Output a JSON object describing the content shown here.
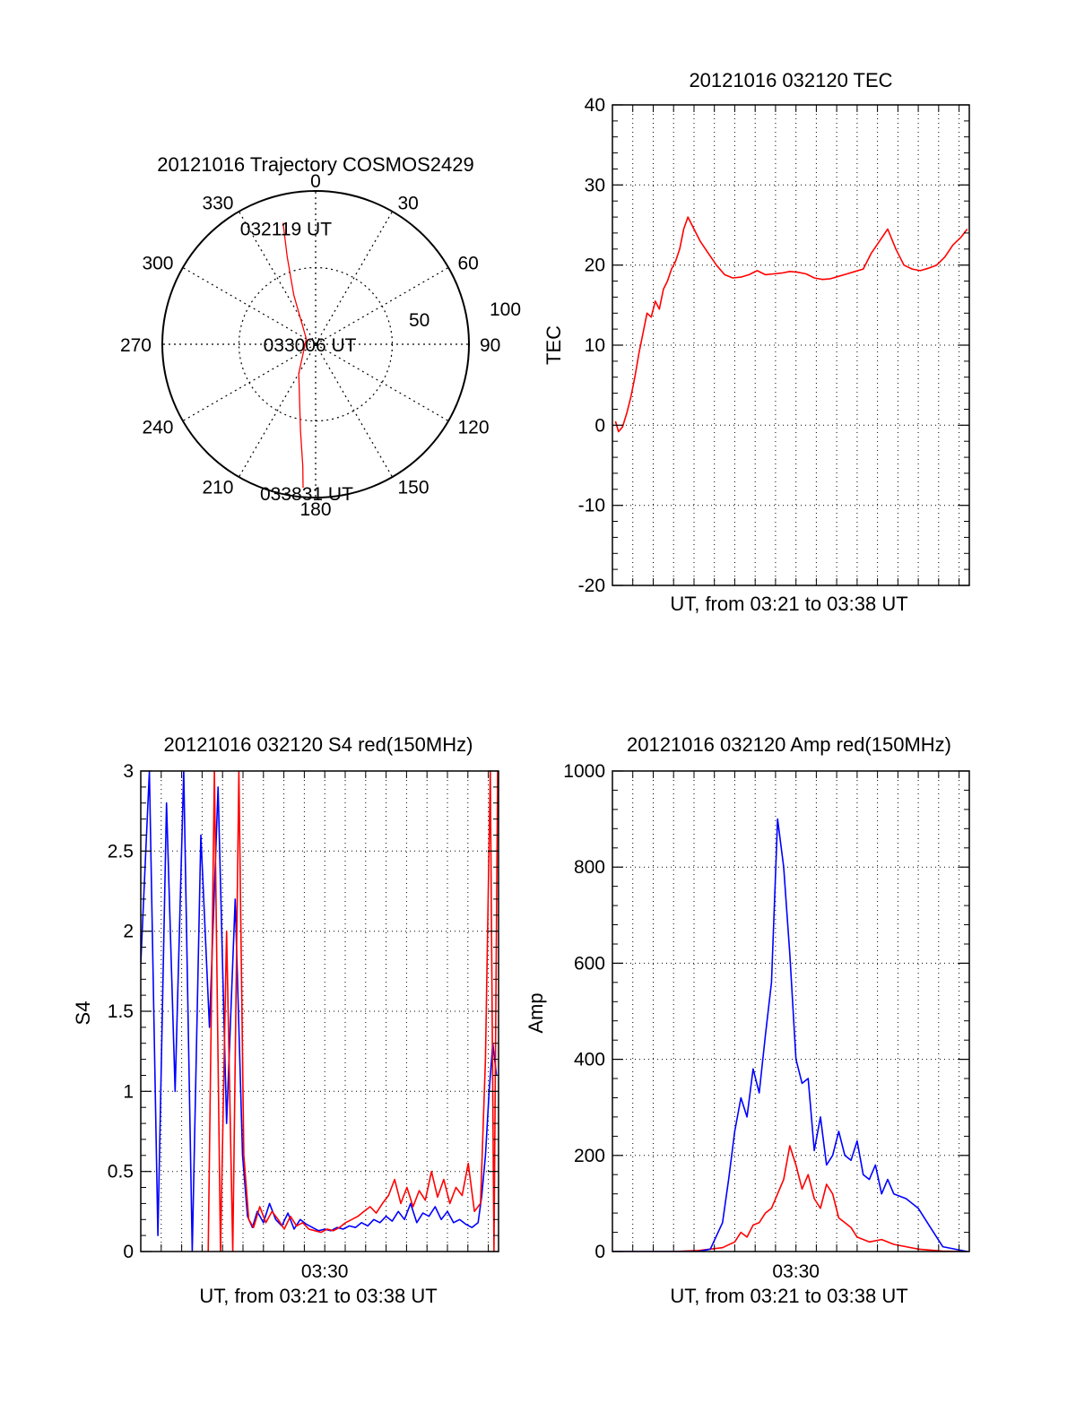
{
  "colors": {
    "red": "#ff0000",
    "blue": "#0000ff",
    "axis": "#000000",
    "grid": "#000000",
    "background": "#ffffff"
  },
  "chart_data": [
    {
      "id": "trajectory",
      "type": "polar",
      "title": "20121016 Trajectory COSMOS2429",
      "azimuth_labels": [
        "0",
        "30",
        "60",
        "90",
        "120",
        "150",
        "180",
        "210",
        "240",
        "270",
        "300",
        "330"
      ],
      "radial_ticks": [
        50,
        100
      ],
      "radial_tick_labels": [
        "50",
        "100"
      ],
      "radial_max": 100,
      "grid": true,
      "series": [
        {
          "color": "red",
          "points": [
            [
              345,
              82
            ],
            [
              342,
              60
            ],
            [
              336,
              35
            ],
            [
              300,
              7
            ],
            [
              210,
              22
            ],
            [
              190,
              57
            ],
            [
              186,
              80
            ],
            [
              185,
              94
            ]
          ]
        }
      ],
      "annotations": [
        {
          "text": "032119 UT",
          "az": 345,
          "r": 82
        },
        {
          "text": "033006 UT",
          "az": 300,
          "r": 7
        },
        {
          "text": "033831 UT",
          "az": 185,
          "r": 94
        }
      ]
    },
    {
      "id": "tec",
      "type": "line",
      "title": "20121016 032120 TEC",
      "xlabel": "UT, from 03:21 to 03:38 UT",
      "ylabel": "TEC",
      "xlim": [
        3.35,
        3.6417
      ],
      "ylim": [
        -20,
        40
      ],
      "yticks": [
        -20,
        -10,
        0,
        10,
        20,
        30,
        40
      ],
      "grid": true,
      "series": [
        {
          "color": "red",
          "x": [
            3.3525,
            3.355,
            3.3583,
            3.3617,
            3.365,
            3.3683,
            3.3717,
            3.375,
            3.3783,
            3.3817,
            3.385,
            3.3883,
            3.3917,
            3.395,
            3.3983,
            3.4017,
            3.405,
            3.4083,
            3.4117,
            3.415,
            3.4183,
            3.4217,
            3.4283,
            3.435,
            3.4417,
            3.4483,
            3.455,
            3.4617,
            3.4683,
            3.475,
            3.4817,
            3.4883,
            3.495,
            3.5017,
            3.5083,
            3.515,
            3.5217,
            3.5283,
            3.535,
            3.5417,
            3.5483,
            3.555,
            3.5617,
            3.5683,
            3.575,
            3.5817,
            3.5883,
            3.595,
            3.6017,
            3.6083,
            3.615,
            3.6217,
            3.6283,
            3.635,
            3.64
          ],
          "y": [
            0.5,
            -0.8,
            -0.2,
            1.5,
            3.5,
            6.0,
            9.0,
            11.5,
            14.0,
            13.5,
            15.5,
            14.5,
            17.0,
            18.0,
            19.5,
            20.5,
            22.0,
            24.5,
            26.0,
            25.0,
            24.0,
            23.0,
            21.5,
            20.0,
            18.8,
            18.4,
            18.5,
            18.8,
            19.3,
            18.8,
            18.9,
            19.0,
            19.2,
            19.1,
            18.9,
            18.4,
            18.2,
            18.3,
            18.6,
            18.9,
            19.2,
            19.5,
            21.5,
            23.0,
            24.5,
            22.0,
            20.0,
            19.5,
            19.3,
            19.6,
            20.0,
            21.0,
            22.5,
            23.5,
            24.5
          ]
        }
      ]
    },
    {
      "id": "s4",
      "type": "line",
      "title": "20121016 032120 S4 red(150MHz)",
      "xlabel": "UT, from 03:21 to 03:38 UT",
      "ylabel": "S4",
      "xlim": [
        3.35,
        3.6417
      ],
      "ylim": [
        0,
        3
      ],
      "yticks": [
        0,
        0.5,
        1,
        1.5,
        2,
        2.5,
        3
      ],
      "ytick_labels": [
        "0",
        "0.5",
        "1",
        "1.5",
        "2",
        "2.5",
        "3"
      ],
      "xticks": [
        3.5
      ],
      "xtick_labels": [
        "03:30"
      ],
      "grid": true,
      "series": [
        {
          "color": "blue",
          "x": [
            3.35,
            3.357,
            3.364,
            3.371,
            3.378,
            3.385,
            3.392,
            3.399,
            3.406,
            3.413,
            3.42,
            3.427,
            3.433,
            3.437,
            3.441,
            3.445,
            3.45,
            3.455,
            3.46,
            3.465,
            3.47,
            3.475,
            3.48,
            3.485,
            3.49,
            3.495,
            3.5,
            3.505,
            3.51,
            3.515,
            3.52,
            3.525,
            3.53,
            3.535,
            3.54,
            3.545,
            3.55,
            3.555,
            3.56,
            3.565,
            3.57,
            3.575,
            3.58,
            3.585,
            3.59,
            3.595,
            3.6,
            3.605,
            3.61,
            3.615,
            3.62,
            3.625,
            3.628,
            3.631,
            3.634,
            3.637,
            3.64
          ],
          "y": [
            1.8,
            3.0,
            0.1,
            2.8,
            1.0,
            3.0,
            0.0,
            2.6,
            1.4,
            2.9,
            0.8,
            2.2,
            0.6,
            0.22,
            0.15,
            0.25,
            0.18,
            0.3,
            0.2,
            0.16,
            0.24,
            0.14,
            0.2,
            0.17,
            0.15,
            0.13,
            0.14,
            0.13,
            0.15,
            0.14,
            0.16,
            0.15,
            0.18,
            0.16,
            0.2,
            0.18,
            0.22,
            0.19,
            0.25,
            0.2,
            0.3,
            0.18,
            0.24,
            0.22,
            0.28,
            0.2,
            0.25,
            0.18,
            0.2,
            0.17,
            0.15,
            0.18,
            0.35,
            0.6,
            1.0,
            1.3,
            1.1
          ]
        },
        {
          "color": "red",
          "x": [
            3.405,
            3.41,
            3.415,
            3.42,
            3.425,
            3.43,
            3.434,
            3.438,
            3.442,
            3.447,
            3.452,
            3.457,
            3.462,
            3.467,
            3.472,
            3.477,
            3.482,
            3.487,
            3.492,
            3.497,
            3.502,
            3.507,
            3.512,
            3.517,
            3.522,
            3.527,
            3.532,
            3.537,
            3.542,
            3.547,
            3.552,
            3.557,
            3.562,
            3.567,
            3.572,
            3.577,
            3.582,
            3.587,
            3.592,
            3.597,
            3.602,
            3.607,
            3.612,
            3.617,
            3.622,
            3.627,
            3.631,
            3.635,
            3.638,
            3.641
          ],
          "y": [
            0.0,
            3.0,
            0.0,
            2.0,
            0.0,
            3.0,
            0.6,
            0.2,
            0.15,
            0.28,
            0.18,
            0.25,
            0.2,
            0.14,
            0.22,
            0.16,
            0.18,
            0.14,
            0.13,
            0.12,
            0.14,
            0.13,
            0.15,
            0.18,
            0.2,
            0.22,
            0.25,
            0.28,
            0.24,
            0.3,
            0.35,
            0.45,
            0.3,
            0.4,
            0.28,
            0.38,
            0.32,
            0.5,
            0.34,
            0.45,
            0.3,
            0.4,
            0.35,
            0.55,
            0.25,
            0.3,
            1.2,
            3.0,
            0.0,
            3.0
          ]
        }
      ]
    },
    {
      "id": "amp",
      "type": "line",
      "title": "20121016 032120 Amp red(150MHz)",
      "xlabel": "UT, from 03:21 to 03:38 UT",
      "ylabel": "Amp",
      "xlim": [
        3.35,
        3.6417
      ],
      "ylim": [
        0,
        1000
      ],
      "yticks": [
        0,
        200,
        400,
        600,
        800,
        1000
      ],
      "xticks": [
        3.5
      ],
      "xtick_labels": [
        "03:30"
      ],
      "grid": true,
      "series": [
        {
          "color": "red",
          "x": [
            3.35,
            3.4,
            3.42,
            3.44,
            3.45,
            3.455,
            3.46,
            3.465,
            3.47,
            3.475,
            3.48,
            3.485,
            3.49,
            3.495,
            3.5,
            3.505,
            3.51,
            3.515,
            3.52,
            3.525,
            3.53,
            3.535,
            3.54,
            3.545,
            3.55,
            3.56,
            3.57,
            3.58,
            3.59,
            3.6,
            3.61,
            3.62,
            3.64
          ],
          "y": [
            0,
            0,
            2,
            8,
            20,
            40,
            30,
            55,
            60,
            80,
            90,
            120,
            150,
            220,
            180,
            130,
            160,
            110,
            90,
            140,
            120,
            70,
            60,
            50,
            30,
            20,
            25,
            15,
            10,
            5,
            3,
            1,
            0
          ]
        },
        {
          "color": "blue",
          "x": [
            3.35,
            3.4,
            3.42,
            3.43,
            3.44,
            3.445,
            3.45,
            3.455,
            3.46,
            3.465,
            3.47,
            3.475,
            3.48,
            3.485,
            3.49,
            3.495,
            3.5,
            3.505,
            3.51,
            3.515,
            3.52,
            3.525,
            3.53,
            3.535,
            3.54,
            3.545,
            3.55,
            3.555,
            3.56,
            3.565,
            3.57,
            3.575,
            3.58,
            3.59,
            3.6,
            3.61,
            3.62,
            3.64
          ],
          "y": [
            0,
            0,
            0,
            5,
            60,
            150,
            250,
            320,
            280,
            380,
            330,
            450,
            560,
            900,
            800,
            620,
            400,
            350,
            360,
            210,
            280,
            180,
            200,
            250,
            200,
            190,
            230,
            160,
            150,
            180,
            120,
            150,
            120,
            110,
            90,
            50,
            10,
            0
          ]
        }
      ]
    }
  ]
}
